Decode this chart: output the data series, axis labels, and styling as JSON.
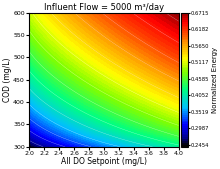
{
  "title": "Influent Flow = 5000 m³/day",
  "colorbar_title": "Normalized Energy",
  "xlabel": "All DO Setpoint (mg/L)",
  "ylabel": "COD (mg/L)",
  "xlim": [
    2.0,
    4.0
  ],
  "ylim": [
    300,
    600
  ],
  "xticks": [
    2.0,
    2.2,
    2.4,
    2.6,
    2.8,
    3.0,
    3.2,
    3.4,
    3.6,
    3.8,
    4.0
  ],
  "yticks": [
    300,
    350,
    400,
    450,
    500,
    550,
    600
  ],
  "cbar_ticks": [
    0.2454,
    0.2987,
    0.3519,
    0.4052,
    0.4585,
    0.5117,
    0.565,
    0.6182,
    0.6715
  ],
  "vmin": 0.2454,
  "vmax": 0.6715,
  "colormap_nodes": [
    [
      0.0,
      "#000000"
    ],
    [
      0.05,
      "#00008b"
    ],
    [
      0.15,
      "#0000ff"
    ],
    [
      0.28,
      "#00bfff"
    ],
    [
      0.42,
      "#00ff80"
    ],
    [
      0.55,
      "#80ff00"
    ],
    [
      0.65,
      "#ffff00"
    ],
    [
      0.75,
      "#ffaa00"
    ],
    [
      0.85,
      "#ff4400"
    ],
    [
      0.93,
      "#ff0000"
    ],
    [
      1.0,
      "#8b0000"
    ]
  ]
}
